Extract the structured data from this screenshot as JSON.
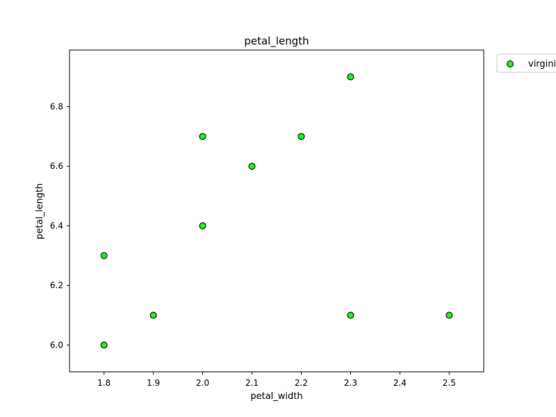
{
  "chart_data": {
    "type": "scatter",
    "title": "petal_length",
    "xlabel": "petal_width",
    "ylabel": "petal_length",
    "xlim": [
      1.73,
      2.57
    ],
    "ylim": [
      5.91,
      6.99
    ],
    "xticks": [
      1.8,
      1.9,
      2.0,
      2.1,
      2.2,
      2.3,
      2.4,
      2.5
    ],
    "xtick_labels": [
      "1.8",
      "1.9",
      "2.0",
      "2.1",
      "2.2",
      "2.3",
      "2.4",
      "2.5"
    ],
    "yticks": [
      6.0,
      6.2,
      6.4,
      6.6,
      6.8
    ],
    "ytick_labels": [
      "6.0",
      "6.2",
      "6.4",
      "6.6",
      "6.8"
    ],
    "grid": false,
    "legend_position": "outside top-right",
    "series": [
      {
        "name": "virginica",
        "legend_label": "virgini",
        "color": "#22ee22",
        "edge_color": "#000000",
        "points": [
          {
            "x": 1.8,
            "y": 6.0
          },
          {
            "x": 1.8,
            "y": 6.3
          },
          {
            "x": 1.9,
            "y": 6.1
          },
          {
            "x": 2.0,
            "y": 6.7
          },
          {
            "x": 2.0,
            "y": 6.4
          },
          {
            "x": 2.1,
            "y": 6.6
          },
          {
            "x": 2.2,
            "y": 6.7
          },
          {
            "x": 2.3,
            "y": 6.9
          },
          {
            "x": 2.3,
            "y": 6.1
          },
          {
            "x": 2.5,
            "y": 6.1
          }
        ]
      }
    ]
  }
}
